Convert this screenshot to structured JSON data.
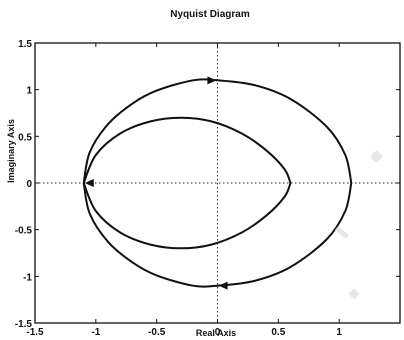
{
  "chart_data": {
    "type": "line",
    "title": "Nyquist Diagram",
    "xlabel": "Real Axis",
    "ylabel": "Imaginary Axis",
    "xlim": [
      -1.5,
      1.5
    ],
    "ylim": [
      -1.5,
      1.5
    ],
    "xticks": [
      -1.5,
      -1,
      -0.5,
      0,
      0.5,
      1
    ],
    "xtick_labels": [
      "-1.5",
      "-1",
      "-0.5",
      "0",
      "0.5",
      "1"
    ],
    "yticks": [
      1.5,
      1,
      0.5,
      0,
      -0.5,
      -1,
      -1.5
    ],
    "ytick_labels": [
      "1.5",
      "1",
      "0.5",
      "0",
      "-0.5",
      "-1",
      "-1.5"
    ],
    "grid": false,
    "reference_lines": {
      "x": 0,
      "y": 0
    },
    "curves": [
      {
        "x": [
          -1.1,
          -1.05,
          -0.9,
          -0.7,
          -0.5,
          -0.2,
          0.0,
          0.3,
          0.6,
          0.9,
          1.05,
          1.1
        ],
        "y": [
          0.0,
          0.33,
          0.63,
          0.85,
          0.99,
          1.1,
          1.1,
          1.05,
          0.9,
          0.6,
          0.3,
          0.0
        ]
      },
      {
        "x": [
          -1.1,
          -1.05,
          -0.9,
          -0.7,
          -0.5,
          -0.2,
          0.0,
          0.3,
          0.6,
          0.9,
          1.05,
          1.1
        ],
        "y": [
          0.0,
          -0.33,
          -0.63,
          -0.85,
          -0.99,
          -1.1,
          -1.1,
          -1.05,
          -0.9,
          -0.6,
          -0.3,
          0.0
        ]
      },
      {
        "x": [
          -1.1,
          -1.0,
          -0.8,
          -0.55,
          -0.3,
          -0.05,
          0.2,
          0.4,
          0.55,
          0.6
        ],
        "y": [
          0.0,
          0.3,
          0.53,
          0.66,
          0.7,
          0.66,
          0.53,
          0.35,
          0.15,
          0.0
        ]
      },
      {
        "x": [
          -1.1,
          -1.0,
          -0.8,
          -0.55,
          -0.3,
          -0.05,
          0.2,
          0.4,
          0.55,
          0.6
        ],
        "y": [
          0.0,
          -0.3,
          -0.53,
          -0.66,
          -0.7,
          -0.66,
          -0.53,
          -0.35,
          -0.15,
          0.0
        ]
      }
    ],
    "arrows": [
      {
        "x": -0.05,
        "y": 1.1,
        "direction": "right"
      },
      {
        "x": 0.05,
        "y": -1.1,
        "direction": "left"
      },
      {
        "x": -1.05,
        "y": 0.0,
        "direction": "left"
      }
    ]
  }
}
